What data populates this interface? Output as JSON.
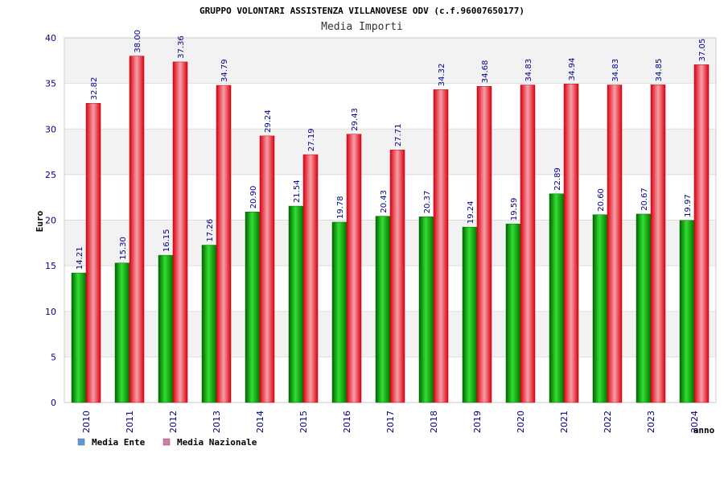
{
  "chart_data": {
    "type": "bar",
    "title": "GRUPPO VOLONTARI ASSISTENZA VILLANOVESE ODV (c.f.96007650177)",
    "subtitle": "Media Importi",
    "xlabel": "anno",
    "ylabel": "Euro",
    "ylim": [
      0,
      40
    ],
    "yticks": [
      "0",
      "5",
      "10",
      "15",
      "20",
      "25",
      "30",
      "35",
      "40"
    ],
    "categories": [
      "2010",
      "2011",
      "2012",
      "2013",
      "2014",
      "2015",
      "2016",
      "2017",
      "2018",
      "2019",
      "2020",
      "2021",
      "2022",
      "2023",
      "2024"
    ],
    "series": [
      {
        "name": "Media Ente",
        "color": "#00aa00",
        "legend_color": "#5b9bd5",
        "values": [
          14.21,
          15.3,
          16.15,
          17.26,
          20.9,
          21.54,
          19.78,
          20.43,
          20.37,
          19.24,
          19.59,
          22.89,
          20.6,
          20.67,
          19.97
        ],
        "labels": [
          "14.21",
          "15.30",
          "16.15",
          "17.26",
          "20.90",
          "21.54",
          "19.78",
          "20.43",
          "20.37",
          "19.24",
          "19.59",
          "22.89",
          "20.60",
          "20.67",
          "19.97"
        ]
      },
      {
        "name": "Media Nazionale",
        "color": "#ee1122",
        "legend_color": "#dd77aa",
        "values": [
          32.82,
          38.0,
          37.36,
          34.79,
          29.24,
          27.19,
          29.43,
          27.71,
          34.32,
          34.68,
          34.83,
          34.94,
          34.83,
          34.85,
          37.05
        ],
        "labels": [
          "32.82",
          "38.00",
          "37.36",
          "34.79",
          "29.24",
          "27.19",
          "29.43",
          "27.71",
          "34.32",
          "34.68",
          "34.83",
          "34.94",
          "34.83",
          "34.85",
          "37.05"
        ]
      }
    ],
    "grid": true,
    "legend": "bottom-left"
  }
}
